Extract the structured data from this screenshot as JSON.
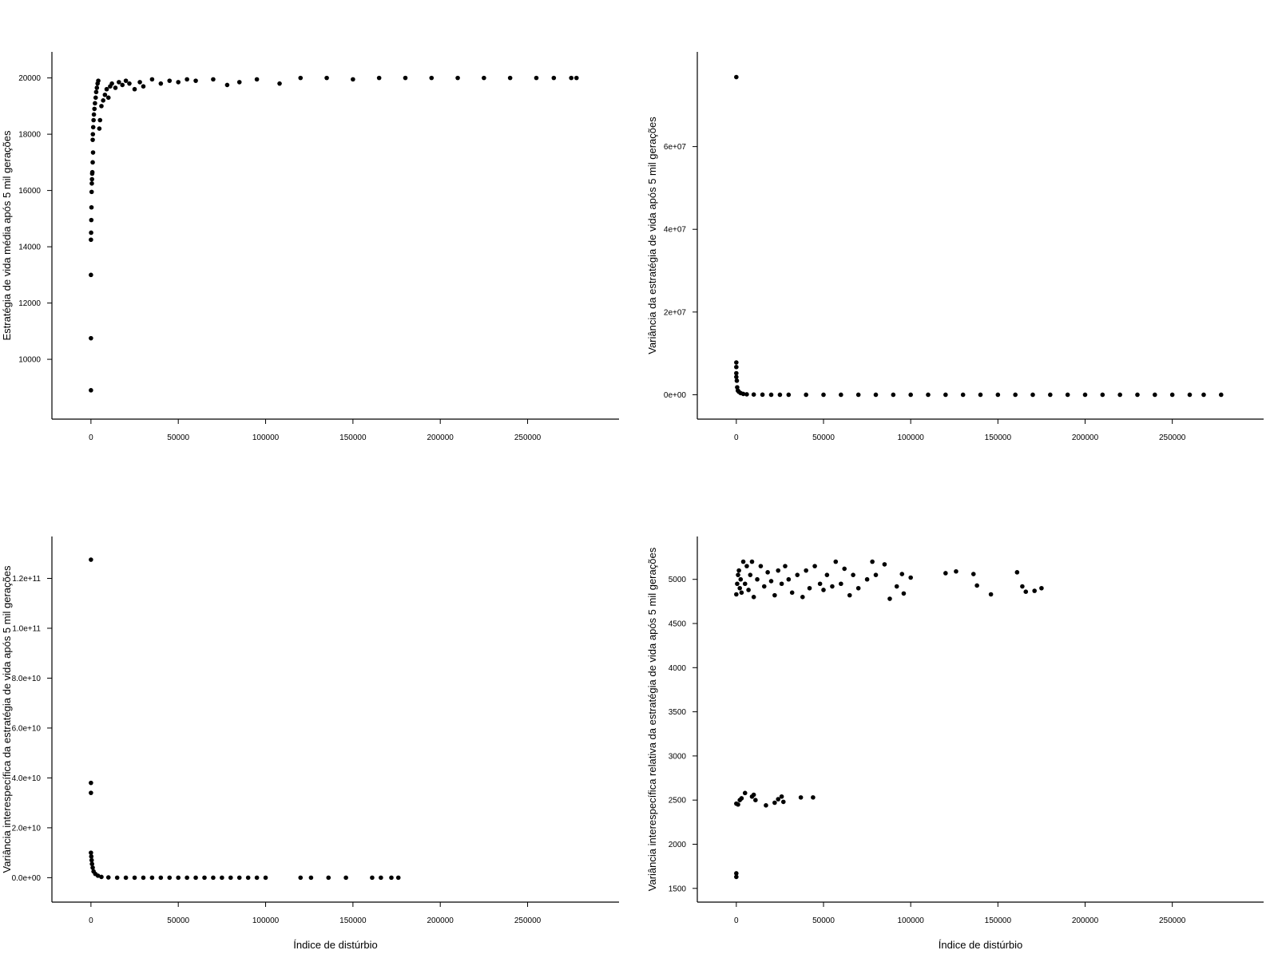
{
  "chart_data": [
    {
      "type": "scatter",
      "xlabel": "",
      "ylabel": "Estratégia de vida média após 5 mil gerações",
      "xlim": [
        -10000,
        290000
      ],
      "ylim": [
        8300,
        20500
      ],
      "x_ticks": [
        0,
        50000,
        100000,
        150000,
        200000,
        250000
      ],
      "x_tick_labels": [
        "0",
        "50000",
        "100000",
        "150000",
        "200000",
        "250000"
      ],
      "y_ticks": [
        10000,
        12000,
        14000,
        16000,
        18000,
        20000
      ],
      "y_tick_labels": [
        "10000",
        "12000",
        "14000",
        "16000",
        "18000",
        "20000"
      ],
      "grid": false,
      "color": "#000000",
      "points": [
        [
          0,
          8900
        ],
        [
          0,
          10750
        ],
        [
          0,
          13000
        ],
        [
          0,
          14250
        ],
        [
          100,
          14500
        ],
        [
          200,
          14950
        ],
        [
          300,
          15400
        ],
        [
          400,
          15950
        ],
        [
          500,
          16250
        ],
        [
          600,
          16400
        ],
        [
          700,
          16600
        ],
        [
          800,
          16650
        ],
        [
          1000,
          17000
        ],
        [
          1200,
          17350
        ],
        [
          1000,
          17800
        ],
        [
          1100,
          18000
        ],
        [
          1300,
          18250
        ],
        [
          1500,
          18500
        ],
        [
          1700,
          18700
        ],
        [
          2000,
          18900
        ],
        [
          2300,
          19100
        ],
        [
          2700,
          19300
        ],
        [
          3000,
          19500
        ],
        [
          3400,
          19650
        ],
        [
          3800,
          19800
        ],
        [
          4200,
          19900
        ],
        [
          4800,
          18200
        ],
        [
          5200,
          18500
        ],
        [
          6000,
          19000
        ],
        [
          7000,
          19200
        ],
        [
          8000,
          19400
        ],
        [
          9000,
          19600
        ],
        [
          10000,
          19300
        ],
        [
          11000,
          19700
        ],
        [
          12000,
          19800
        ],
        [
          14000,
          19650
        ],
        [
          16000,
          19850
        ],
        [
          18000,
          19750
        ],
        [
          20000,
          19900
        ],
        [
          22000,
          19800
        ],
        [
          25000,
          19600
        ],
        [
          28000,
          19850
        ],
        [
          30000,
          19700
        ],
        [
          35000,
          19950
        ],
        [
          40000,
          19800
        ],
        [
          45000,
          19900
        ],
        [
          50000,
          19850
        ],
        [
          55000,
          19950
        ],
        [
          60000,
          19900
        ],
        [
          70000,
          19950
        ],
        [
          78000,
          19750
        ],
        [
          85000,
          19850
        ],
        [
          95000,
          19950
        ],
        [
          108000,
          19800
        ],
        [
          120000,
          20000
        ],
        [
          135000,
          20000
        ],
        [
          150000,
          19950
        ],
        [
          165000,
          20000
        ],
        [
          180000,
          20000
        ],
        [
          195000,
          20000
        ],
        [
          210000,
          20000
        ],
        [
          225000,
          20000
        ],
        [
          240000,
          20000
        ],
        [
          255000,
          20000
        ],
        [
          265000,
          20000
        ],
        [
          275000,
          20000
        ],
        [
          278000,
          20000
        ]
      ]
    },
    {
      "type": "scatter",
      "xlabel": "",
      "ylabel": "Variância da estratégia de vida após 5 mil gerações",
      "xlim": [
        -10000,
        290000
      ],
      "ylim": [
        -3000000,
        80000000
      ],
      "x_ticks": [
        0,
        50000,
        100000,
        150000,
        200000,
        250000
      ],
      "x_tick_labels": [
        "0",
        "50000",
        "100000",
        "150000",
        "200000",
        "250000"
      ],
      "y_ticks": [
        0,
        20000000,
        40000000,
        60000000
      ],
      "y_tick_labels": [
        "0e+00",
        "2e+07",
        "4e+07",
        "6e+07"
      ],
      "grid": false,
      "color": "#000000",
      "points": [
        [
          0,
          76800000
        ],
        [
          0,
          7800000
        ],
        [
          0,
          6700000
        ],
        [
          0,
          5200000
        ],
        [
          0,
          4300000
        ],
        [
          300,
          3400000
        ],
        [
          500,
          1800000
        ],
        [
          900,
          1000000
        ],
        [
          1500,
          700000
        ],
        [
          2500,
          400000
        ],
        [
          4000,
          200000
        ],
        [
          6000,
          100000
        ],
        [
          10000,
          50000
        ],
        [
          15000,
          20000
        ],
        [
          20000,
          0
        ],
        [
          25000,
          0
        ],
        [
          30000,
          0
        ],
        [
          40000,
          0
        ],
        [
          50000,
          0
        ],
        [
          60000,
          0
        ],
        [
          70000,
          0
        ],
        [
          80000,
          0
        ],
        [
          90000,
          0
        ],
        [
          100000,
          0
        ],
        [
          110000,
          0
        ],
        [
          120000,
          0
        ],
        [
          130000,
          0
        ],
        [
          140000,
          0
        ],
        [
          150000,
          0
        ],
        [
          160000,
          0
        ],
        [
          170000,
          0
        ],
        [
          180000,
          0
        ],
        [
          190000,
          0
        ],
        [
          200000,
          0
        ],
        [
          210000,
          0
        ],
        [
          220000,
          0
        ],
        [
          230000,
          0
        ],
        [
          240000,
          0
        ],
        [
          250000,
          0
        ],
        [
          260000,
          0
        ],
        [
          268000,
          0
        ],
        [
          278000,
          0
        ]
      ]
    },
    {
      "type": "scatter",
      "xlabel": "Índice de distúrbio",
      "ylabel": "Variância interespecífica da estratégia de vida após 5 mil gerações",
      "xlim": [
        -10000,
        290000
      ],
      "ylim": [
        -5000000000,
        132000000000
      ],
      "x_ticks": [
        0,
        50000,
        100000,
        150000,
        200000,
        250000
      ],
      "x_tick_labels": [
        "0",
        "50000",
        "100000",
        "150000",
        "200000",
        "250000"
      ],
      "y_ticks": [
        0,
        20000000000,
        40000000000,
        60000000000,
        80000000000,
        100000000000,
        120000000000
      ],
      "y_tick_labels": [
        "0.0e+00",
        "2.0e+10",
        "4.0e+10",
        "6.0e+10",
        "8.0e+10",
        "1.0e+11",
        "1.2e+11"
      ],
      "grid": false,
      "color": "#000000",
      "points": [
        [
          0,
          127500000000
        ],
        [
          0,
          38000000000
        ],
        [
          0,
          34000000000
        ],
        [
          0,
          10000000000
        ],
        [
          200,
          8500000000
        ],
        [
          400,
          7000000000
        ],
        [
          600,
          5500000000
        ],
        [
          1000,
          4000000000
        ],
        [
          1500,
          2500000000
        ],
        [
          2500,
          1500000000
        ],
        [
          4000,
          800000000
        ],
        [
          6000,
          300000000
        ],
        [
          10000,
          100000000
        ],
        [
          15000,
          0
        ],
        [
          20000,
          0
        ],
        [
          25000,
          0
        ],
        [
          30000,
          0
        ],
        [
          35000,
          0
        ],
        [
          40000,
          0
        ],
        [
          45000,
          0
        ],
        [
          50000,
          0
        ],
        [
          55000,
          0
        ],
        [
          60000,
          0
        ],
        [
          65000,
          0
        ],
        [
          70000,
          0
        ],
        [
          75000,
          0
        ],
        [
          80000,
          0
        ],
        [
          85000,
          0
        ],
        [
          90000,
          0
        ],
        [
          95000,
          0
        ],
        [
          100000,
          0
        ],
        [
          120000,
          0
        ],
        [
          126000,
          0
        ],
        [
          136000,
          0
        ],
        [
          146000,
          0
        ],
        [
          161000,
          0
        ],
        [
          166000,
          0
        ],
        [
          172000,
          0
        ],
        [
          176000,
          0
        ]
      ]
    },
    {
      "type": "scatter",
      "xlabel": "Índice de distúrbio",
      "ylabel": "Variância interespecífica relativa da estratégia de vida após 5 mil gerações",
      "xlim": [
        -10000,
        290000
      ],
      "ylim": [
        1480,
        5350
      ],
      "x_ticks": [
        0,
        50000,
        100000,
        150000,
        200000,
        250000
      ],
      "x_tick_labels": [
        "0",
        "50000",
        "100000",
        "150000",
        "200000",
        "250000"
      ],
      "y_ticks": [
        1500,
        2000,
        2500,
        3000,
        3500,
        4000,
        4500,
        5000
      ],
      "y_tick_labels": [
        "1500",
        "2000",
        "2500",
        "3000",
        "3500",
        "4000",
        "4500",
        "5000"
      ],
      "grid": false,
      "color": "#000000",
      "points": [
        [
          0,
          1630
        ],
        [
          0,
          1670
        ],
        [
          0,
          2460
        ],
        [
          1000,
          2450
        ],
        [
          2000,
          2500
        ],
        [
          3000,
          2520
        ],
        [
          5000,
          2580
        ],
        [
          9000,
          2540
        ],
        [
          10000,
          2560
        ],
        [
          11000,
          2500
        ],
        [
          17000,
          2440
        ],
        [
          22000,
          2470
        ],
        [
          24000,
          2510
        ],
        [
          26000,
          2540
        ],
        [
          27000,
          2480
        ],
        [
          37000,
          2530
        ],
        [
          44000,
          2530
        ],
        [
          0,
          4830
        ],
        [
          500,
          4950
        ],
        [
          1000,
          5050
        ],
        [
          1500,
          5100
        ],
        [
          2000,
          4900
        ],
        [
          2500,
          5000
        ],
        [
          3000,
          4850
        ],
        [
          4000,
          5200
        ],
        [
          5000,
          4950
        ],
        [
          6000,
          5150
        ],
        [
          7000,
          4880
        ],
        [
          8000,
          5050
        ],
        [
          9000,
          5200
        ],
        [
          10000,
          4800
        ],
        [
          12000,
          5000
        ],
        [
          14000,
          5150
        ],
        [
          16000,
          4920
        ],
        [
          18000,
          5080
        ],
        [
          20000,
          4980
        ],
        [
          22000,
          4820
        ],
        [
          24000,
          5100
        ],
        [
          26000,
          4950
        ],
        [
          28000,
          5150
        ],
        [
          30000,
          5000
        ],
        [
          32000,
          4850
        ],
        [
          35000,
          5050
        ],
        [
          38000,
          4800
        ],
        [
          40000,
          5100
        ],
        [
          42000,
          4900
        ],
        [
          45000,
          5150
        ],
        [
          48000,
          4950
        ],
        [
          50000,
          4880
        ],
        [
          52000,
          5050
        ],
        [
          55000,
          4920
        ],
        [
          57000,
          5200
        ],
        [
          60000,
          4950
        ],
        [
          62000,
          5120
        ],
        [
          65000,
          4820
        ],
        [
          67000,
          5050
        ],
        [
          70000,
          4900
        ],
        [
          75000,
          5000
        ],
        [
          78000,
          5200
        ],
        [
          80000,
          5050
        ],
        [
          85000,
          5170
        ],
        [
          88000,
          4780
        ],
        [
          92000,
          4920
        ],
        [
          95000,
          5060
        ],
        [
          96000,
          4840
        ],
        [
          100000,
          5020
        ],
        [
          120000,
          5070
        ],
        [
          126000,
          5090
        ],
        [
          136000,
          5060
        ],
        [
          138000,
          4930
        ],
        [
          146000,
          4830
        ],
        [
          161000,
          5080
        ],
        [
          164000,
          4920
        ],
        [
          166000,
          4860
        ],
        [
          171000,
          4870
        ],
        [
          175000,
          4900
        ]
      ]
    }
  ]
}
